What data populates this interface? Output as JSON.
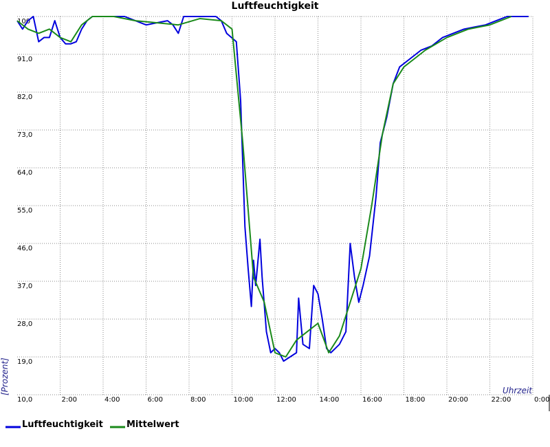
{
  "chart_data": {
    "type": "line",
    "title": "Luftfeuchtigkeit",
    "y_label": "[Prozent]",
    "x_label": "Uhrzeit",
    "xlim": [
      0,
      24
    ],
    "ylim": [
      10,
      100
    ],
    "grid": true,
    "xticks": [
      {
        "value": 2,
        "label": "2:00"
      },
      {
        "value": 4,
        "label": "4:00"
      },
      {
        "value": 6,
        "label": "6:00"
      },
      {
        "value": 8,
        "label": "8:00"
      },
      {
        "value": 10,
        "label": "10:00"
      },
      {
        "value": 12,
        "label": "12:00"
      },
      {
        "value": 14,
        "label": "14:00"
      },
      {
        "value": 16,
        "label": "16:00"
      },
      {
        "value": 18,
        "label": "18:00"
      },
      {
        "value": 20,
        "label": "20:00"
      },
      {
        "value": 22,
        "label": "22:00"
      },
      {
        "value": 24,
        "label": "0:00"
      }
    ],
    "yticks": [
      {
        "value": 10,
        "label": "10,0"
      },
      {
        "value": 19,
        "label": "19,0"
      },
      {
        "value": 28,
        "label": "28,0"
      },
      {
        "value": 37,
        "label": "37,0"
      },
      {
        "value": 46,
        "label": "46,0"
      },
      {
        "value": 55,
        "label": "55,0"
      },
      {
        "value": 64,
        "label": "64,0"
      },
      {
        "value": 73,
        "label": "73,0"
      },
      {
        "value": 82,
        "label": "82,0"
      },
      {
        "value": 91,
        "label": "91,0"
      },
      {
        "value": 100,
        "label": "100"
      }
    ],
    "series": [
      {
        "name": "Luftfeuchtigkeit",
        "color": "#0000dd",
        "x": [
          0,
          0.25,
          0.5,
          0.75,
          1.0,
          1.25,
          1.5,
          1.75,
          2.0,
          2.25,
          2.5,
          2.75,
          3.0,
          3.25,
          3.5,
          4,
          4.5,
          5,
          5.5,
          6,
          6.5,
          7,
          7.25,
          7.5,
          7.75,
          8,
          8.5,
          9,
          9.25,
          9.5,
          9.75,
          10.2,
          10.4,
          10.5,
          10.6,
          10.75,
          10.9,
          11.0,
          11.1,
          11.3,
          11.4,
          11.6,
          11.8,
          12.0,
          12.2,
          12.4,
          12.7,
          13.0,
          13.1,
          13.3,
          13.6,
          13.8,
          14.0,
          14.2,
          14.4,
          14.6,
          14.8,
          15.0,
          15.3,
          15.5,
          15.7,
          15.9,
          16.1,
          16.4,
          16.7,
          16.9,
          17.2,
          17.5,
          17.8,
          18.3,
          18.8,
          19.3,
          19.8,
          20.3,
          20.8,
          21.3,
          21.8,
          22.3,
          22.8,
          23.2,
          23.8
        ],
        "values": [
          99,
          97,
          99,
          100,
          94,
          95,
          95,
          99,
          95,
          93.5,
          93.5,
          94,
          97,
          99,
          100,
          100,
          100,
          100,
          99,
          98,
          98.5,
          99,
          98,
          96,
          100,
          100,
          100,
          100,
          100,
          99,
          96,
          94,
          80,
          65,
          50,
          40,
          31,
          42,
          36,
          47,
          38,
          25,
          20,
          21,
          20,
          18,
          19,
          20,
          33,
          22,
          21,
          36,
          34,
          28,
          21,
          20,
          21,
          22,
          25,
          46,
          38,
          32,
          36,
          43,
          57,
          70,
          76,
          84,
          88,
          90,
          92,
          93,
          95,
          96,
          97,
          97.5,
          98,
          99,
          100,
          100,
          100
        ]
      },
      {
        "name": "Mittelwert",
        "color": "#1a8a1a",
        "x": [
          0,
          0.5,
          1.0,
          1.5,
          2.0,
          2.5,
          3.0,
          3.5,
          4.5,
          5.5,
          6.5,
          7.5,
          8.5,
          9.5,
          10.0,
          10.5,
          11.0,
          11.5,
          12.0,
          12.5,
          13.0,
          13.5,
          14.0,
          14.5,
          15.0,
          15.5,
          16.0,
          16.5,
          17.0,
          17.5,
          18.0,
          18.5,
          19.0,
          19.5,
          20.0,
          20.5,
          21.0,
          21.5,
          22.0,
          22.5,
          23.0
        ],
        "values": [
          99,
          97,
          96,
          97,
          95,
          94,
          98,
          100,
          100,
          99,
          98.5,
          98,
          99.5,
          99,
          97,
          70,
          38,
          32,
          20,
          19,
          23,
          25,
          27,
          20,
          24,
          32,
          40,
          55,
          72,
          84,
          88,
          90,
          92,
          93.5,
          95,
          96,
          97,
          97.5,
          98,
          99,
          100
        ]
      }
    ]
  }
}
